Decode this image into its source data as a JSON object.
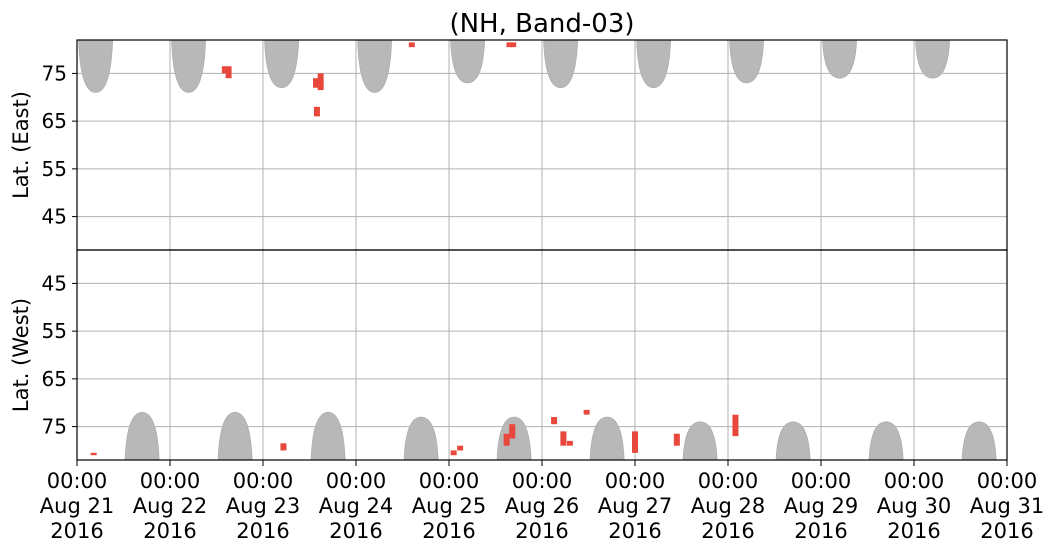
{
  "chart_data": {
    "type": "heatmap",
    "title": "(NH, Band-03)",
    "colors": {
      "coverage": "#b8b8b8",
      "detection": "#e8473b",
      "grid": "#b0b0b0",
      "frame": "#000000"
    },
    "x_ticks": [
      [
        "00:00",
        "Aug 21",
        "2016"
      ],
      [
        "00:00",
        "Aug 22",
        "2016"
      ],
      [
        "00:00",
        "Aug 23",
        "2016"
      ],
      [
        "00:00",
        "Aug 24",
        "2016"
      ],
      [
        "00:00",
        "Aug 25",
        "2016"
      ],
      [
        "00:00",
        "Aug 26",
        "2016"
      ],
      [
        "00:00",
        "Aug 27",
        "2016"
      ],
      [
        "00:00",
        "Aug 28",
        "2016"
      ],
      [
        "00:00",
        "Aug 29",
        "2016"
      ],
      [
        "00:00",
        "Aug 30",
        "2016"
      ],
      [
        "00:00",
        "Aug 31",
        "2016"
      ]
    ],
    "xlim": [
      "2016-08-21 00:00",
      "2016-08-31 00:00"
    ],
    "grid": true,
    "panels": [
      {
        "id": "east",
        "ylabel": "Lat. (East)",
        "ylim": [
          38,
          82
        ],
        "y_inverted": false,
        "yticks": [
          45,
          55,
          65,
          75
        ],
        "coverage_lobes": [
          {
            "day": 0.2,
            "bottom": 71
          },
          {
            "day": 1.2,
            "bottom": 71
          },
          {
            "day": 2.2,
            "bottom": 72
          },
          {
            "day": 3.2,
            "bottom": 71
          },
          {
            "day": 4.2,
            "bottom": 73
          },
          {
            "day": 5.2,
            "bottom": 72
          },
          {
            "day": 6.2,
            "bottom": 72
          },
          {
            "day": 7.2,
            "bottom": 73
          },
          {
            "day": 8.2,
            "bottom": 74
          },
          {
            "day": 9.2,
            "bottom": 74
          },
          {
            "day": 10.2,
            "bottom": 74
          }
        ],
        "detections": [
          {
            "day": 1.59,
            "lat_min": 75.0,
            "lat_max": 76.5
          },
          {
            "day": 1.63,
            "lat_min": 74.0,
            "lat_max": 76.5
          },
          {
            "day": 2.58,
            "lat_min": 66.0,
            "lat_max": 68.0
          },
          {
            "day": 2.57,
            "lat_min": 72.0,
            "lat_max": 74.0
          },
          {
            "day": 2.62,
            "lat_min": 71.5,
            "lat_max": 75.0
          },
          {
            "day": 3.6,
            "lat_min": 80.5,
            "lat_max": 81.5
          },
          {
            "day": 4.65,
            "lat_min": 80.5,
            "lat_max": 81.5
          },
          {
            "day": 4.69,
            "lat_min": 80.5,
            "lat_max": 81.5
          }
        ]
      },
      {
        "id": "west",
        "ylabel": "Lat. (West)",
        "ylim": [
          82,
          38
        ],
        "y_inverted": true,
        "yticks": [
          75,
          65,
          55,
          45
        ],
        "coverage_lobes": [
          {
            "day": 0.7,
            "top": 72
          },
          {
            "day": 1.7,
            "top": 72
          },
          {
            "day": 2.7,
            "top": 72
          },
          {
            "day": 3.7,
            "top": 73
          },
          {
            "day": 4.7,
            "top": 73
          },
          {
            "day": 5.7,
            "top": 73
          },
          {
            "day": 6.7,
            "top": 74
          },
          {
            "day": 7.7,
            "top": 74
          },
          {
            "day": 8.7,
            "top": 74
          },
          {
            "day": 9.7,
            "top": 74
          },
          {
            "day": 10.7,
            "top": 75
          }
        ],
        "detections": [
          {
            "day": 0.18,
            "lat_min": 80.5,
            "lat_max": 81.0
          },
          {
            "day": 2.22,
            "lat_min": 78.5,
            "lat_max": 80.0
          },
          {
            "day": 4.05,
            "lat_min": 80.0,
            "lat_max": 81.0
          },
          {
            "day": 4.12,
            "lat_min": 79.0,
            "lat_max": 80.0
          },
          {
            "day": 4.62,
            "lat_min": 76.5,
            "lat_max": 79.0
          },
          {
            "day": 4.68,
            "lat_min": 74.5,
            "lat_max": 77.5
          },
          {
            "day": 5.13,
            "lat_min": 73.0,
            "lat_max": 74.5
          },
          {
            "day": 5.23,
            "lat_min": 76.0,
            "lat_max": 79.0
          },
          {
            "day": 5.3,
            "lat_min": 78.0,
            "lat_max": 79.0
          },
          {
            "day": 5.48,
            "lat_min": 71.5,
            "lat_max": 72.5
          },
          {
            "day": 6.0,
            "lat_min": 76.0,
            "lat_max": 80.5
          },
          {
            "day": 6.45,
            "lat_min": 76.5,
            "lat_max": 79.0
          },
          {
            "day": 7.08,
            "lat_min": 72.5,
            "lat_max": 77.0
          }
        ]
      }
    ]
  }
}
